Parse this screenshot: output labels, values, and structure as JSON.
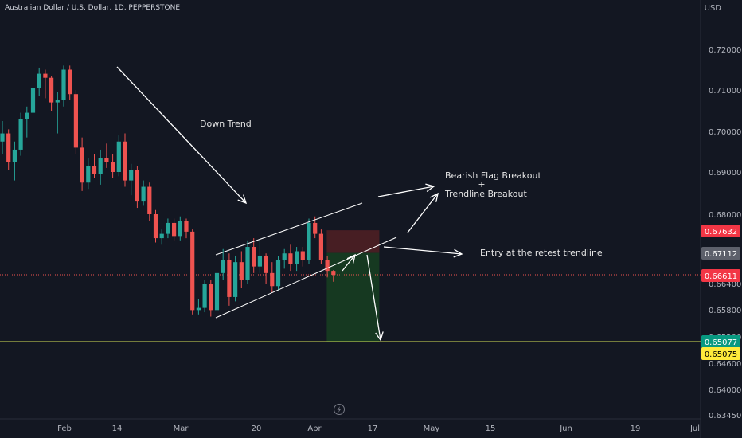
{
  "header": {
    "symbol_title": "Australian Dollar / U.S. Dollar, 1D, PEPPERSTONE",
    "currency": "USD"
  },
  "colors": {
    "background": "#131722",
    "bull": "#26a69a",
    "bear": "#ef5350",
    "stop_zone": "#4a1f24",
    "target_zone": "#163b22",
    "horizontal_line": "#d4e157",
    "current_price_line": "#ef5350",
    "annotation": "#ffffff"
  },
  "chart_data": {
    "type": "candlestick",
    "x_ticks": [
      "Feb",
      "14",
      "Mar",
      "20",
      "Apr",
      "17",
      "May",
      "15",
      "Jun",
      "19",
      "Jul"
    ],
    "y_ticks": [
      "0.72000",
      "0.71000",
      "0.70000",
      "0.69000",
      "0.68000",
      "0.66400",
      "0.65800",
      "0.65200",
      "0.64600",
      "0.64000",
      "0.63450"
    ],
    "price_tags": [
      {
        "id": "stop",
        "value": "0.67632",
        "color": "#f23645",
        "text_color": "#ffffff"
      },
      {
        "id": "entry",
        "value": "0.67112",
        "color": "#5d606b",
        "text_color": "#ffffff"
      },
      {
        "id": "current",
        "value": "0.66611",
        "color": "#f23645",
        "text_color": "#ffffff"
      },
      {
        "id": "target",
        "value": "0.65077",
        "color": "#089981",
        "text_color": "#ffffff"
      },
      {
        "id": "line",
        "value": "0.65075",
        "color": "#ffeb3b",
        "text_color": "#000000"
      }
    ],
    "annotations": [
      {
        "id": "down-trend",
        "text": "Down Trend"
      },
      {
        "id": "bearish-flag",
        "text": "Bearish Flag Breakout"
      },
      {
        "id": "plus",
        "text": "+"
      },
      {
        "id": "trendline-breakout",
        "text": "Trendline Breakout"
      },
      {
        "id": "entry-retest",
        "text": "Entry at the retest trendline"
      }
    ],
    "position": {
      "direction": "short",
      "entry": 0.67112,
      "stop": 0.67632,
      "target": 0.65077
    },
    "horizontal_level": 0.65075,
    "candles": [
      {
        "o": 0.6975,
        "h": 0.7025,
        "l": 0.6945,
        "c": 0.6995
      },
      {
        "o": 0.6995,
        "h": 0.7005,
        "l": 0.6905,
        "c": 0.6925
      },
      {
        "o": 0.6925,
        "h": 0.6975,
        "l": 0.688,
        "c": 0.6955
      },
      {
        "o": 0.6955,
        "h": 0.7045,
        "l": 0.694,
        "c": 0.703
      },
      {
        "o": 0.703,
        "h": 0.706,
        "l": 0.6985,
        "c": 0.7045
      },
      {
        "o": 0.7045,
        "h": 0.712,
        "l": 0.703,
        "c": 0.7105
      },
      {
        "o": 0.7105,
        "h": 0.7155,
        "l": 0.7085,
        "c": 0.714
      },
      {
        "o": 0.714,
        "h": 0.715,
        "l": 0.708,
        "c": 0.713
      },
      {
        "o": 0.713,
        "h": 0.7135,
        "l": 0.705,
        "c": 0.707
      },
      {
        "o": 0.707,
        "h": 0.7095,
        "l": 0.6995,
        "c": 0.7075
      },
      {
        "o": 0.7075,
        "h": 0.716,
        "l": 0.706,
        "c": 0.715
      },
      {
        "o": 0.715,
        "h": 0.716,
        "l": 0.7075,
        "c": 0.709
      },
      {
        "o": 0.709,
        "h": 0.71,
        "l": 0.6945,
        "c": 0.696
      },
      {
        "o": 0.696,
        "h": 0.6985,
        "l": 0.6855,
        "c": 0.6875
      },
      {
        "o": 0.6875,
        "h": 0.6935,
        "l": 0.686,
        "c": 0.6915
      },
      {
        "o": 0.6915,
        "h": 0.6945,
        "l": 0.6885,
        "c": 0.6895
      },
      {
        "o": 0.6895,
        "h": 0.6955,
        "l": 0.687,
        "c": 0.6935
      },
      {
        "o": 0.6935,
        "h": 0.697,
        "l": 0.691,
        "c": 0.6925
      },
      {
        "o": 0.6925,
        "h": 0.6945,
        "l": 0.6885,
        "c": 0.69
      },
      {
        "o": 0.69,
        "h": 0.699,
        "l": 0.689,
        "c": 0.6975
      },
      {
        "o": 0.6975,
        "h": 0.6995,
        "l": 0.6865,
        "c": 0.688
      },
      {
        "o": 0.688,
        "h": 0.692,
        "l": 0.6845,
        "c": 0.6905
      },
      {
        "o": 0.6905,
        "h": 0.6915,
        "l": 0.6815,
        "c": 0.683
      },
      {
        "o": 0.683,
        "h": 0.688,
        "l": 0.682,
        "c": 0.6865
      },
      {
        "o": 0.6865,
        "h": 0.6875,
        "l": 0.6785,
        "c": 0.68
      },
      {
        "o": 0.68,
        "h": 0.681,
        "l": 0.6735,
        "c": 0.6745
      },
      {
        "o": 0.6745,
        "h": 0.6765,
        "l": 0.673,
        "c": 0.6755
      },
      {
        "o": 0.6755,
        "h": 0.679,
        "l": 0.6745,
        "c": 0.678
      },
      {
        "o": 0.678,
        "h": 0.679,
        "l": 0.674,
        "c": 0.675
      },
      {
        "o": 0.675,
        "h": 0.6795,
        "l": 0.674,
        "c": 0.6785
      },
      {
        "o": 0.6785,
        "h": 0.679,
        "l": 0.6745,
        "c": 0.676
      },
      {
        "o": 0.676,
        "h": 0.6765,
        "l": 0.657,
        "c": 0.658
      },
      {
        "o": 0.658,
        "h": 0.6605,
        "l": 0.657,
        "c": 0.6585
      },
      {
        "o": 0.6585,
        "h": 0.665,
        "l": 0.6575,
        "c": 0.664
      },
      {
        "o": 0.664,
        "h": 0.665,
        "l": 0.6565,
        "c": 0.658
      },
      {
        "o": 0.658,
        "h": 0.6675,
        "l": 0.6575,
        "c": 0.6665
      },
      {
        "o": 0.6665,
        "h": 0.672,
        "l": 0.665,
        "c": 0.6695
      },
      {
        "o": 0.6695,
        "h": 0.671,
        "l": 0.659,
        "c": 0.661
      },
      {
        "o": 0.661,
        "h": 0.6705,
        "l": 0.66,
        "c": 0.669
      },
      {
        "o": 0.669,
        "h": 0.6715,
        "l": 0.663,
        "c": 0.665
      },
      {
        "o": 0.665,
        "h": 0.674,
        "l": 0.664,
        "c": 0.6725
      },
      {
        "o": 0.6725,
        "h": 0.6745,
        "l": 0.6665,
        "c": 0.668
      },
      {
        "o": 0.668,
        "h": 0.674,
        "l": 0.6665,
        "c": 0.6705
      },
      {
        "o": 0.6705,
        "h": 0.671,
        "l": 0.664,
        "c": 0.6665
      },
      {
        "o": 0.6665,
        "h": 0.669,
        "l": 0.662,
        "c": 0.6635
      },
      {
        "o": 0.6635,
        "h": 0.6705,
        "l": 0.6625,
        "c": 0.6695
      },
      {
        "o": 0.6695,
        "h": 0.672,
        "l": 0.6675,
        "c": 0.671
      },
      {
        "o": 0.671,
        "h": 0.673,
        "l": 0.667,
        "c": 0.6685
      },
      {
        "o": 0.6685,
        "h": 0.6725,
        "l": 0.667,
        "c": 0.6715
      },
      {
        "o": 0.6715,
        "h": 0.6725,
        "l": 0.668,
        "c": 0.6695
      },
      {
        "o": 0.6695,
        "h": 0.679,
        "l": 0.6685,
        "c": 0.678
      },
      {
        "o": 0.678,
        "h": 0.6795,
        "l": 0.6745,
        "c": 0.6755
      },
      {
        "o": 0.6755,
        "h": 0.6765,
        "l": 0.6685,
        "c": 0.6695
      },
      {
        "o": 0.6695,
        "h": 0.6705,
        "l": 0.6655,
        "c": 0.667
      },
      {
        "o": 0.667,
        "h": 0.6672,
        "l": 0.6645,
        "c": 0.6661
      }
    ]
  }
}
